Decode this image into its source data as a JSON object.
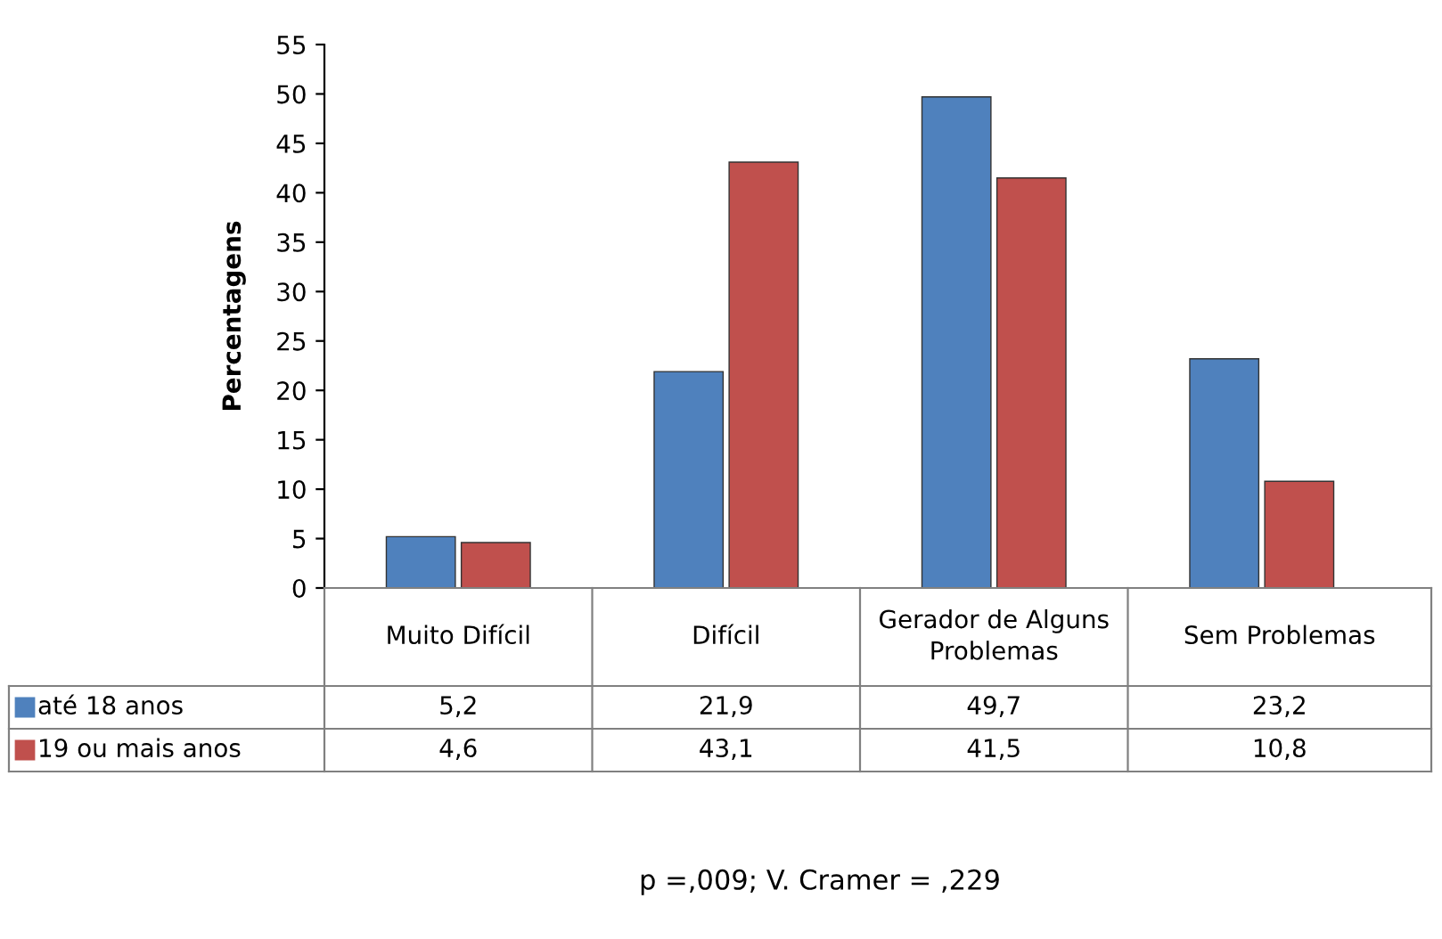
{
  "chart_data": {
    "type": "bar",
    "ylabel": "Percentagens",
    "categories": [
      "Muito Difícil",
      "Difícil",
      "Gerador de Alguns Problemas",
      "Sem Problemas"
    ],
    "series": [
      {
        "name": "até 18 anos",
        "color": "#4f81bd",
        "values": [
          5.2,
          21.9,
          49.7,
          23.2
        ],
        "value_labels": [
          "5,2",
          "21,9",
          "49,7",
          "23,2"
        ]
      },
      {
        "name": "19 ou mais anos",
        "color": "#c0504d",
        "values": [
          4.6,
          43.1,
          41.5,
          10.8
        ],
        "value_labels": [
          "4,6",
          "43,1",
          "41,5",
          "10,8"
        ]
      }
    ],
    "ylim": [
      0,
      55
    ],
    "yticks": [
      0,
      5,
      10,
      15,
      20,
      25,
      30,
      35,
      40,
      45,
      50,
      55
    ],
    "grid": false,
    "legend": "bottom left",
    "annotations": [
      "p =,009; V. Cramer = ,229"
    ]
  }
}
